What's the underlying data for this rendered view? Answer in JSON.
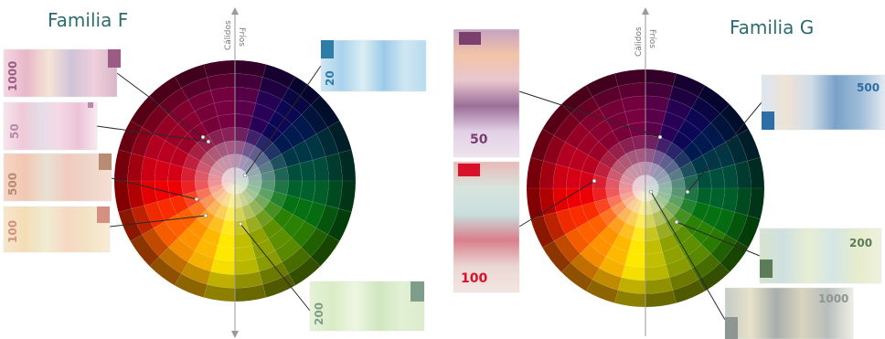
{
  "families": [
    {
      "title": "Familia F",
      "axis_labels": {
        "warm": "Cálidos",
        "cool": "Fríos"
      },
      "notes": [
        {
          "label": "1000",
          "colors": [
            "#f2d7e3",
            "#e8b7c9",
            "#f4e4d6",
            "#cfc2d8",
            "#f0cfdc",
            "#d8b6c8"
          ],
          "tab": "#9c5b85"
        },
        {
          "label": "50",
          "colors": [
            "#f6e5ec",
            "#f0c9d8",
            "#e4dde8",
            "#f5d9e4",
            "#ecc3d6",
            "#f8e8ef"
          ],
          "tab": "#b98aa8"
        },
        {
          "label": "500",
          "colors": [
            "#f4d5c6",
            "#f2c7b2",
            "#e8e1d4",
            "#f0cbbd",
            "#eed6c9",
            "#f6dfd3"
          ],
          "tab": "#b88b73"
        },
        {
          "label": "100",
          "colors": [
            "#f7e6cc",
            "#f4dcb6",
            "#f0ecd2",
            "#f6d8c3",
            "#f2e4c4",
            "#f9ebd6"
          ],
          "tab": "#d49080"
        },
        {
          "label": "20",
          "colors": [
            "#cfe4f2",
            "#a8d2ec",
            "#dbeef3",
            "#9ccae9",
            "#d0e7f3",
            "#b6dbf0"
          ],
          "tab": "#2e7ca8"
        },
        {
          "label": "200",
          "colors": [
            "#e6f2d6",
            "#d9ecc6",
            "#eef6e2",
            "#d0e7c0",
            "#e2f0d4",
            "#dceccd"
          ],
          "tab": "#7e9e8a"
        }
      ]
    },
    {
      "title": "Familia G",
      "axis_labels": {
        "warm": "Cálidos",
        "cool": "Fríos"
      },
      "notes": [
        {
          "label": "50",
          "colors": [
            "#c6a3c4",
            "#f2c3a6",
            "#e8c7cf",
            "#9d6e98",
            "#e2d0e6",
            "#efe3ee"
          ],
          "tab": "#7a3f6e"
        },
        {
          "label": "100",
          "colors": [
            "#e9b9b8",
            "#d8e4dd",
            "#c9dfdd",
            "#d97f8c",
            "#ead7d3",
            "#f3e6e1"
          ],
          "tab": "#d9102a"
        },
        {
          "label": "500",
          "colors": [
            "#dbe6ef",
            "#efe3d6",
            "#cfdce8",
            "#7aa2c9",
            "#9fbcd8",
            "#e3ebf2"
          ],
          "tab": "#2e6ea8"
        },
        {
          "label": "200",
          "colors": [
            "#d6e3cf",
            "#cfe0e0",
            "#e8eed4",
            "#d4e6e4",
            "#e6eccc",
            "#eef2de"
          ],
          "tab": "#5c7c58"
        },
        {
          "label": "1000",
          "colors": [
            "#c6cbc8",
            "#e6e2c8",
            "#a8aeac",
            "#d8d4be",
            "#b8bebc",
            "#eeeee6"
          ],
          "tab": "#8e9592"
        }
      ]
    }
  ]
}
